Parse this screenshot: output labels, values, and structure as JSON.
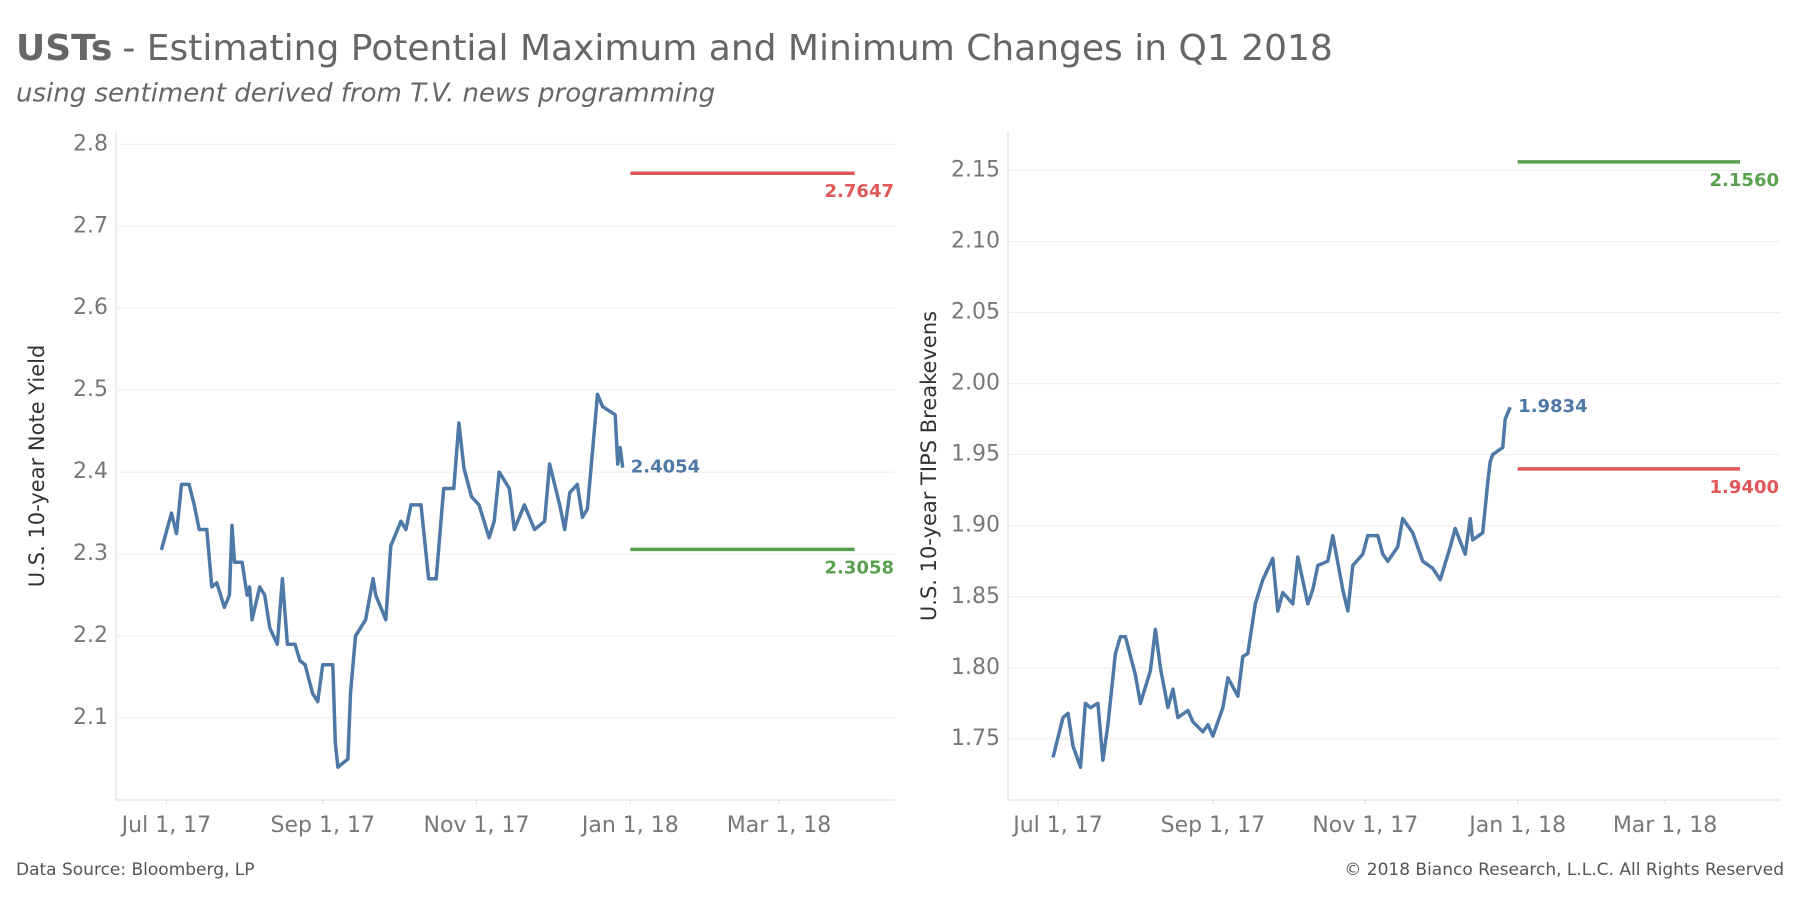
{
  "title_lead": "USTs",
  "title": "- Estimating Potential Maximum and Minimum Changes in Q1 2018",
  "subtitle": "using sentiment derived from T.V. news programming",
  "source": "Data Source: Bloomberg, LP",
  "copyright": "© 2018 Bianco Research, L.L.C. All Rights Reserved",
  "chart_data": [
    {
      "type": "line",
      "ylabel": "U.S. 10-year Note Yield",
      "grid": true,
      "xlim": [
        "2017-06-11",
        "2018-04-16"
      ],
      "xticks": [
        {
          "value": "2017-07-01",
          "label": "Jul 1, 17"
        },
        {
          "value": "2017-09-01",
          "label": "Sep 1, 17"
        },
        {
          "value": "2017-11-01",
          "label": "Nov 1, 17"
        },
        {
          "value": "2018-01-01",
          "label": "Jan 1, 18"
        },
        {
          "value": "2018-03-01",
          "label": "Mar 1, 18"
        }
      ],
      "ylim": [
        2.0,
        2.815
      ],
      "yticks": [
        2.1,
        2.2,
        2.3,
        2.4,
        2.5,
        2.6,
        2.7,
        2.8
      ],
      "x": [
        "2017-06-29",
        "2017-07-03",
        "2017-07-05",
        "2017-07-07",
        "2017-07-10",
        "2017-07-12",
        "2017-07-14",
        "2017-07-17",
        "2017-07-19",
        "2017-07-21",
        "2017-07-24",
        "2017-07-26",
        "2017-07-27",
        "2017-07-28",
        "2017-07-31",
        "2017-08-02",
        "2017-08-03",
        "2017-08-04",
        "2017-08-07",
        "2017-08-09",
        "2017-08-11",
        "2017-08-14",
        "2017-08-16",
        "2017-08-18",
        "2017-08-21",
        "2017-08-23",
        "2017-08-25",
        "2017-08-28",
        "2017-08-30",
        "2017-09-01",
        "2017-09-05",
        "2017-09-06",
        "2017-09-07",
        "2017-09-11",
        "2017-09-12",
        "2017-09-14",
        "2017-09-18",
        "2017-09-21",
        "2017-09-22",
        "2017-09-26",
        "2017-09-28",
        "2017-10-02",
        "2017-10-04",
        "2017-10-06",
        "2017-10-10",
        "2017-10-13",
        "2017-10-16",
        "2017-10-19",
        "2017-10-23",
        "2017-10-25",
        "2017-10-27",
        "2017-10-30",
        "2017-11-02",
        "2017-11-06",
        "2017-11-08",
        "2017-11-10",
        "2017-11-14",
        "2017-11-16",
        "2017-11-20",
        "2017-11-24",
        "2017-11-28",
        "2017-11-30",
        "2017-12-04",
        "2017-12-06",
        "2017-12-08",
        "2017-12-11",
        "2017-12-13",
        "2017-12-15",
        "2017-12-18",
        "2017-12-19",
        "2017-12-21",
        "2017-12-26",
        "2017-12-27",
        "2017-12-28",
        "2017-12-29"
      ],
      "series": [
        {
          "color": "#4e79a7",
          "values": [
            2.305,
            2.35,
            2.325,
            2.385,
            2.385,
            2.36,
            2.33,
            2.33,
            2.26,
            2.265,
            2.235,
            2.25,
            2.335,
            2.29,
            2.29,
            2.25,
            2.26,
            2.22,
            2.26,
            2.25,
            2.21,
            2.19,
            2.27,
            2.19,
            2.19,
            2.17,
            2.165,
            2.13,
            2.12,
            2.165,
            2.165,
            2.07,
            2.04,
            2.05,
            2.13,
            2.2,
            2.22,
            2.27,
            2.25,
            2.22,
            2.31,
            2.34,
            2.33,
            2.36,
            2.36,
            2.27,
            2.27,
            2.38,
            2.38,
            2.46,
            2.405,
            2.37,
            2.36,
            2.32,
            2.34,
            2.4,
            2.38,
            2.33,
            2.36,
            2.33,
            2.34,
            2.41,
            2.36,
            2.33,
            2.375,
            2.385,
            2.345,
            2.355,
            2.46,
            2.495,
            2.48,
            2.47,
            2.41,
            2.43,
            2.4054
          ]
        }
      ],
      "reference_lines": [
        {
          "value": 2.7647,
          "color": "#e15759",
          "x": [
            "2018-01-01",
            "2018-03-31"
          ]
        },
        {
          "value": 2.3058,
          "color": "#59a14f",
          "x": [
            "2018-01-01",
            "2018-03-31"
          ]
        }
      ]
    },
    {
      "type": "line",
      "ylabel": "U.S. 10-year TIPS Breakevens",
      "grid": true,
      "xlim": [
        "2017-06-11",
        "2018-04-16"
      ],
      "xticks": [
        {
          "value": "2017-07-01",
          "label": "Jul 1, 17"
        },
        {
          "value": "2017-09-01",
          "label": "Sep 1, 17"
        },
        {
          "value": "2017-11-01",
          "label": "Nov 1, 17"
        },
        {
          "value": "2018-01-01",
          "label": "Jan 1, 18"
        },
        {
          "value": "2018-03-01",
          "label": "Mar 1, 18"
        }
      ],
      "ylim": [
        1.707,
        2.177
      ],
      "yticks": [
        {
          "value": 1.75,
          "label": "1.75"
        },
        {
          "value": 1.8,
          "label": "1.80"
        },
        {
          "value": 1.85,
          "label": "1.85"
        },
        {
          "value": 1.9,
          "label": "1.90"
        },
        {
          "value": 1.95,
          "label": "1.95"
        },
        {
          "value": 2.0,
          "label": "2.00"
        },
        {
          "value": 2.05,
          "label": "2.05"
        },
        {
          "value": 2.1,
          "label": "2.10"
        },
        {
          "value": 2.15,
          "label": "2.15"
        }
      ],
      "x": [
        "2017-06-29",
        "2017-07-03",
        "2017-07-05",
        "2017-07-07",
        "2017-07-10",
        "2017-07-12",
        "2017-07-14",
        "2017-07-17",
        "2017-07-19",
        "2017-07-21",
        "2017-07-24",
        "2017-07-26",
        "2017-07-28",
        "2017-08-01",
        "2017-08-03",
        "2017-08-07",
        "2017-08-09",
        "2017-08-11",
        "2017-08-14",
        "2017-08-16",
        "2017-08-18",
        "2017-08-22",
        "2017-08-24",
        "2017-08-28",
        "2017-08-30",
        "2017-09-01",
        "2017-09-05",
        "2017-09-07",
        "2017-09-11",
        "2017-09-13",
        "2017-09-15",
        "2017-09-18",
        "2017-09-21",
        "2017-09-25",
        "2017-09-27",
        "2017-09-29",
        "2017-10-03",
        "2017-10-05",
        "2017-10-09",
        "2017-10-11",
        "2017-10-13",
        "2017-10-17",
        "2017-10-19",
        "2017-10-23",
        "2017-10-25",
        "2017-10-27",
        "2017-10-31",
        "2017-11-02",
        "2017-11-06",
        "2017-11-08",
        "2017-11-10",
        "2017-11-14",
        "2017-11-16",
        "2017-11-20",
        "2017-11-22",
        "2017-11-24",
        "2017-11-28",
        "2017-12-01",
        "2017-12-05",
        "2017-12-07",
        "2017-12-11",
        "2017-12-13",
        "2017-12-14",
        "2017-12-18",
        "2017-12-20",
        "2017-12-21",
        "2017-12-22",
        "2017-12-26",
        "2017-12-27",
        "2017-12-29"
      ],
      "series": [
        {
          "color": "#4e79a7",
          "values": [
            1.737,
            1.765,
            1.768,
            1.745,
            1.73,
            1.775,
            1.772,
            1.775,
            1.735,
            1.76,
            1.81,
            1.822,
            1.822,
            1.795,
            1.775,
            1.798,
            1.827,
            1.8,
            1.772,
            1.785,
            1.765,
            1.77,
            1.762,
            1.755,
            1.76,
            1.752,
            1.772,
            1.793,
            1.78,
            1.808,
            1.81,
            1.845,
            1.862,
            1.877,
            1.84,
            1.853,
            1.845,
            1.878,
            1.845,
            1.855,
            1.872,
            1.875,
            1.893,
            1.855,
            1.84,
            1.872,
            1.88,
            1.893,
            1.893,
            1.88,
            1.875,
            1.885,
            1.905,
            1.895,
            1.885,
            1.875,
            1.87,
            1.862,
            1.885,
            1.898,
            1.88,
            1.905,
            1.89,
            1.895,
            1.93,
            1.945,
            1.95,
            1.955,
            1.975,
            1.9834
          ]
        }
      ],
      "reference_lines": [
        {
          "value": 2.156,
          "value_label": "2.1560",
          "color": "#59a14f",
          "x": [
            "2018-01-01",
            "2018-03-31"
          ]
        },
        {
          "value": 1.94,
          "value_label": "1.9400",
          "color": "#e15759",
          "x": [
            "2018-01-01",
            "2018-03-31"
          ]
        }
      ]
    }
  ]
}
